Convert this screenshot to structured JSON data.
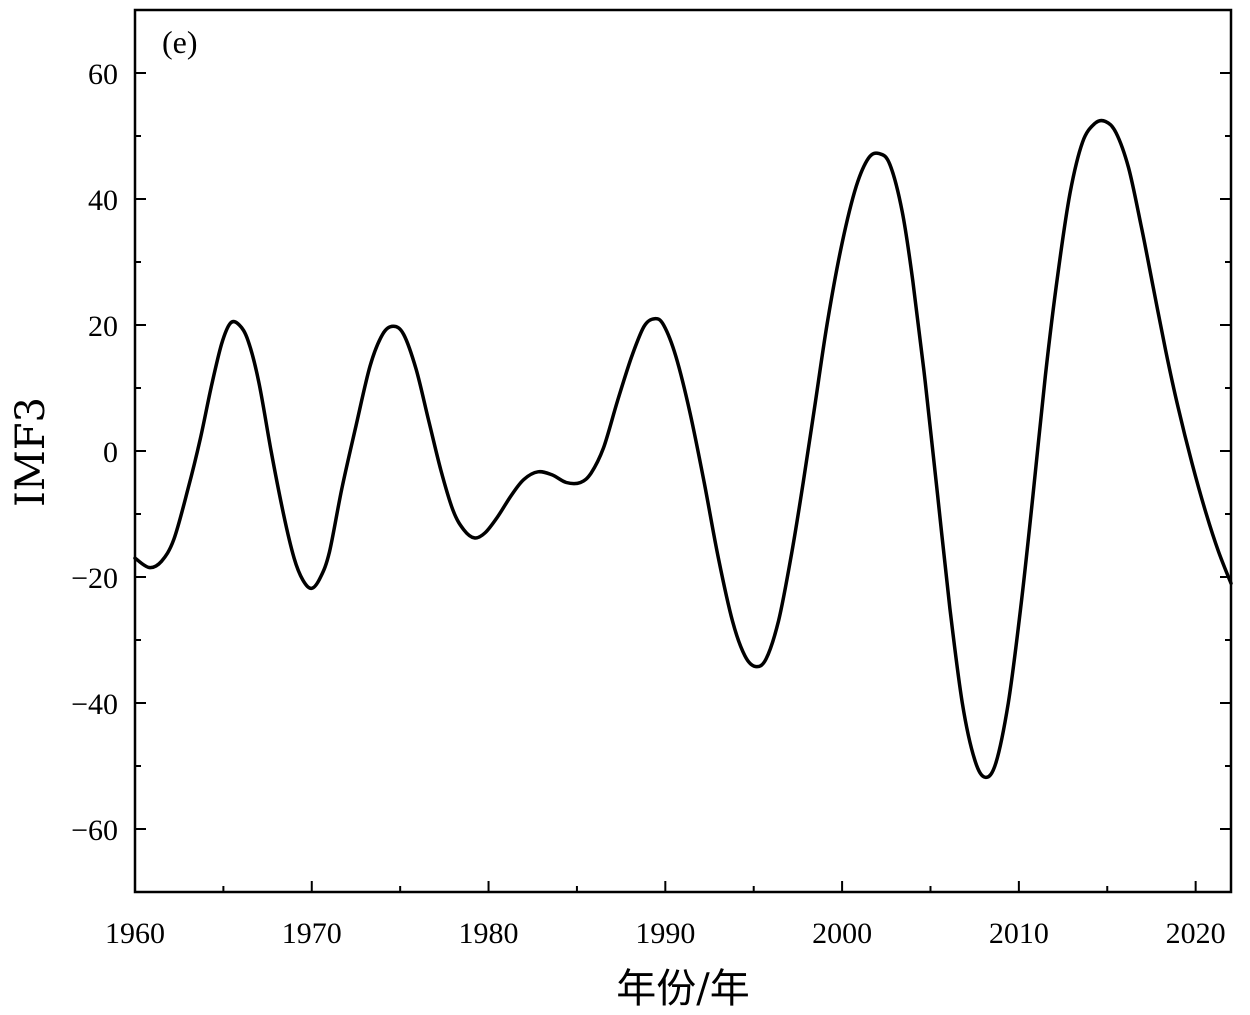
{
  "chart_data": {
    "type": "line",
    "panel_label": "(e)",
    "xlabel": "年份/年",
    "ylabel": "IMF3",
    "xlim": [
      1960,
      2022
    ],
    "ylim": [
      -70,
      70
    ],
    "x_ticks": [
      1960,
      1970,
      1980,
      1990,
      2000,
      2010,
      2020
    ],
    "x_tick_labels": [
      "1960",
      "1970",
      "1980",
      "1990",
      "2000",
      "2010",
      "2020"
    ],
    "x_minor_ticks": [
      1965,
      1975,
      1985,
      1995,
      2005,
      2015
    ],
    "y_ticks": [
      60,
      40,
      20,
      0,
      -20,
      -40,
      -60
    ],
    "y_tick_labels": [
      "60",
      "40",
      "20",
      "0",
      "−20",
      "−40",
      "−60"
    ],
    "y_minor_ticks": [
      50,
      30,
      10,
      -10,
      -30,
      -50
    ],
    "grid": false,
    "series": [
      {
        "color": "#000000",
        "points": [
          [
            1960.0,
            -17.0
          ],
          [
            1960.8,
            -18.5
          ],
          [
            1961.5,
            -17.5
          ],
          [
            1962.2,
            -14.0
          ],
          [
            1963.0,
            -6.0
          ],
          [
            1963.7,
            2.0
          ],
          [
            1964.3,
            10.0
          ],
          [
            1964.9,
            17.0
          ],
          [
            1965.4,
            20.3
          ],
          [
            1965.9,
            20.0
          ],
          [
            1966.4,
            17.5
          ],
          [
            1967.0,
            11.0
          ],
          [
            1967.7,
            0.0
          ],
          [
            1968.4,
            -10.0
          ],
          [
            1969.0,
            -17.0
          ],
          [
            1969.5,
            -20.5
          ],
          [
            1970.0,
            -21.8
          ],
          [
            1970.5,
            -20.0
          ],
          [
            1971.0,
            -16.0
          ],
          [
            1971.7,
            -6.0
          ],
          [
            1972.5,
            4.0
          ],
          [
            1973.3,
            13.5
          ],
          [
            1974.0,
            18.5
          ],
          [
            1974.6,
            19.8
          ],
          [
            1975.2,
            18.5
          ],
          [
            1975.9,
            13.0
          ],
          [
            1976.6,
            5.0
          ],
          [
            1977.3,
            -3.0
          ],
          [
            1978.0,
            -9.5
          ],
          [
            1978.6,
            -12.5
          ],
          [
            1979.2,
            -13.8
          ],
          [
            1979.8,
            -13.0
          ],
          [
            1980.5,
            -10.5
          ],
          [
            1981.3,
            -7.0
          ],
          [
            1982.0,
            -4.5
          ],
          [
            1982.8,
            -3.3
          ],
          [
            1983.6,
            -3.8
          ],
          [
            1984.4,
            -5.0
          ],
          [
            1985.2,
            -5.0
          ],
          [
            1985.8,
            -3.5
          ],
          [
            1986.5,
            0.5
          ],
          [
            1987.3,
            8.0
          ],
          [
            1988.1,
            15.0
          ],
          [
            1988.8,
            19.8
          ],
          [
            1989.4,
            21.0
          ],
          [
            1989.9,
            20.0
          ],
          [
            1990.6,
            15.0
          ],
          [
            1991.4,
            6.0
          ],
          [
            1992.2,
            -5.0
          ],
          [
            1993.0,
            -17.0
          ],
          [
            1993.8,
            -27.0
          ],
          [
            1994.5,
            -32.5
          ],
          [
            1995.1,
            -34.2
          ],
          [
            1995.7,
            -33.0
          ],
          [
            1996.4,
            -27.0
          ],
          [
            1997.1,
            -17.0
          ],
          [
            1997.8,
            -5.0
          ],
          [
            1998.5,
            8.0
          ],
          [
            1999.2,
            21.0
          ],
          [
            2000.0,
            33.0
          ],
          [
            2000.8,
            42.0
          ],
          [
            2001.5,
            46.5
          ],
          [
            2002.1,
            47.2
          ],
          [
            2002.7,
            45.5
          ],
          [
            2003.4,
            38.0
          ],
          [
            2004.0,
            27.0
          ],
          [
            2004.7,
            11.0
          ],
          [
            2005.4,
            -7.0
          ],
          [
            2006.1,
            -25.0
          ],
          [
            2006.8,
            -40.0
          ],
          [
            2007.5,
            -49.0
          ],
          [
            2008.1,
            -51.8
          ],
          [
            2008.7,
            -49.5
          ],
          [
            2009.4,
            -40.0
          ],
          [
            2010.1,
            -25.0
          ],
          [
            2010.8,
            -7.0
          ],
          [
            2011.5,
            12.0
          ],
          [
            2012.2,
            28.0
          ],
          [
            2012.9,
            41.0
          ],
          [
            2013.6,
            49.0
          ],
          [
            2014.3,
            52.0
          ],
          [
            2014.9,
            52.3
          ],
          [
            2015.5,
            50.5
          ],
          [
            2016.2,
            45.0
          ],
          [
            2016.9,
            36.0
          ],
          [
            2017.6,
            26.0
          ],
          [
            2018.3,
            16.0
          ],
          [
            2019.0,
            7.0
          ],
          [
            2019.8,
            -2.0
          ],
          [
            2020.6,
            -10.0
          ],
          [
            2021.3,
            -16.0
          ],
          [
            2022.0,
            -21.0
          ]
        ]
      }
    ]
  }
}
